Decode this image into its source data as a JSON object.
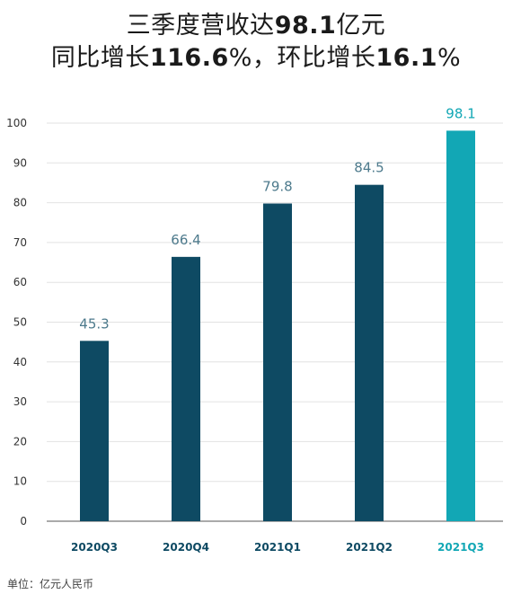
{
  "title": {
    "line1": {
      "pre": "三季度营收达",
      "hl": "98.1",
      "post": "亿元"
    },
    "line2": {
      "pre": "同比增长",
      "hl1": "116.6",
      "mid": "%，环比增长",
      "hl2": "16.1",
      "post": "%"
    }
  },
  "unit_note": "单位：亿元人民币",
  "colors": {
    "bar": "#0e4a63",
    "bar_highlight": "#12a7b5",
    "label": "#4d7a8c",
    "label_highlight": "#12a7b5",
    "tick_x": "#0e4a63",
    "grid": "#e2e2e2",
    "axis": "#555555"
  },
  "chart_data": {
    "type": "bar",
    "categories": [
      "2020Q3",
      "2020Q4",
      "2021Q1",
      "2021Q2",
      "2021Q3"
    ],
    "values": [
      45.3,
      66.4,
      79.8,
      84.5,
      98.1
    ],
    "data_labels": [
      "45.3",
      "66.4",
      "79.8",
      "84.5",
      "98.1"
    ],
    "highlight_index": 4,
    "ylim": [
      0,
      100
    ],
    "yticks": [
      0,
      10,
      20,
      30,
      40,
      50,
      60,
      70,
      80,
      90,
      100
    ],
    "grid": true
  }
}
